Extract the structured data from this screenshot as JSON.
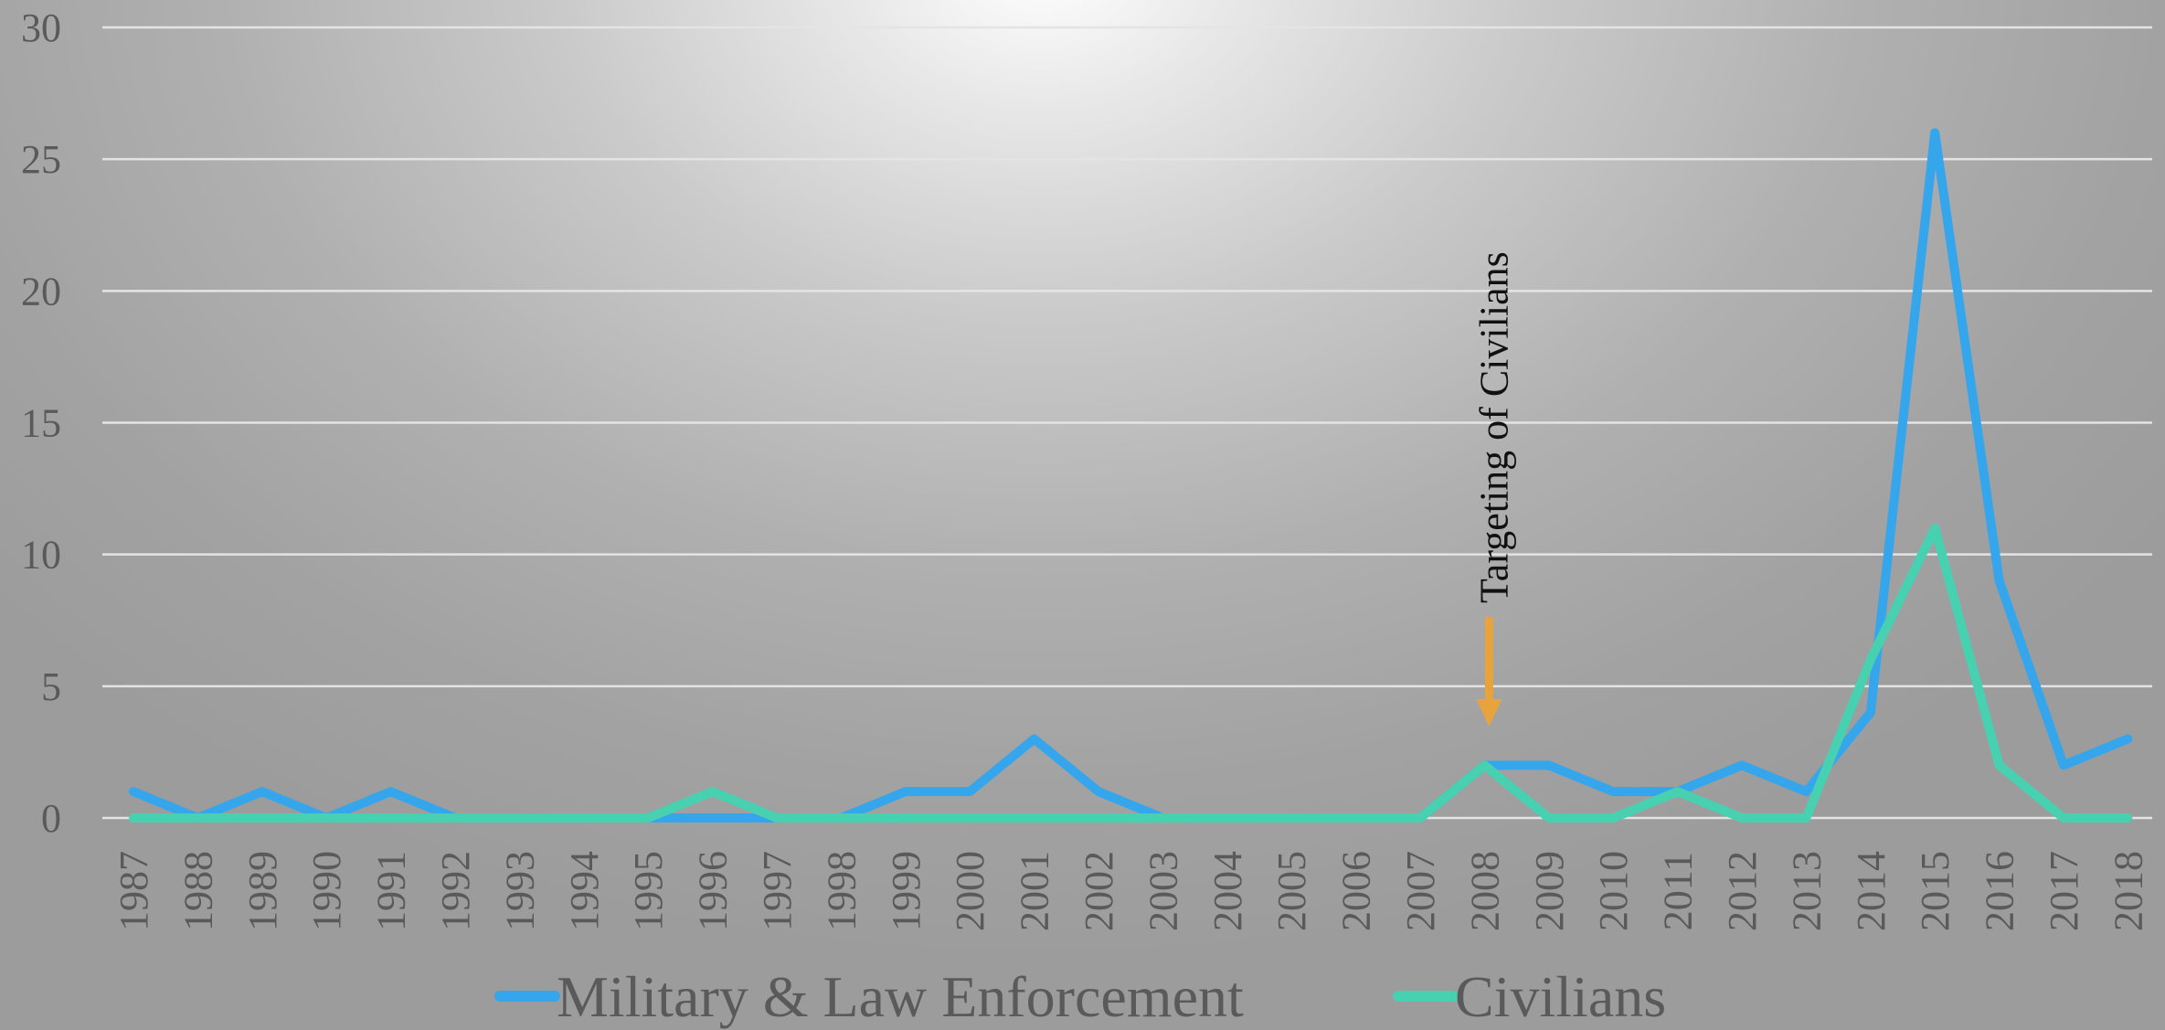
{
  "chart_data": {
    "type": "line",
    "title": "",
    "xlabel": "",
    "ylabel": "",
    "categories": [
      "1987",
      "1988",
      "1989",
      "1990",
      "1991",
      "1992",
      "1993",
      "1994",
      "1995",
      "1996",
      "1997",
      "1998",
      "1999",
      "2000",
      "2001",
      "2002",
      "2003",
      "2004",
      "2005",
      "2006",
      "2007",
      "2008",
      "2009",
      "2010",
      "2011",
      "2012",
      "2013",
      "2014",
      "2015",
      "2016",
      "2017",
      "2018"
    ],
    "ylim": [
      0,
      30
    ],
    "yticks": [
      "0",
      "5",
      "10",
      "15",
      "20",
      "25",
      "30"
    ],
    "grid": true,
    "legend_position": "bottom",
    "series": [
      {
        "name": "Military & Law Enforcement",
        "color": "#35A6EC",
        "values": [
          1,
          0,
          1,
          0,
          1,
          0,
          0,
          0,
          0,
          0,
          0,
          0,
          1,
          1,
          3,
          1,
          0,
          0,
          0,
          0,
          0,
          2,
          2,
          1,
          1,
          2,
          1,
          4,
          26,
          9,
          2,
          3
        ]
      },
      {
        "name": "Civilians",
        "color": "#47D1B0",
        "values": [
          0,
          0,
          0,
          0,
          0,
          0,
          0,
          0,
          0,
          1,
          0,
          0,
          0,
          0,
          0,
          0,
          0,
          0,
          0,
          0,
          0,
          2,
          0,
          0,
          1,
          0,
          0,
          6,
          11,
          2,
          0,
          0
        ]
      }
    ],
    "annotations": [
      {
        "text": "Targeting of Civilians",
        "category": "2008",
        "arrow_color": "#E8A33D"
      }
    ]
  }
}
